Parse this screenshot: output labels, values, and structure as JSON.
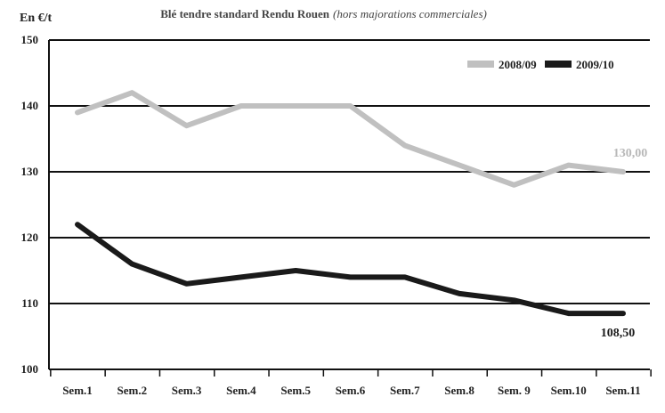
{
  "chart_data": {
    "type": "line",
    "title": "Blé tendre standard Rendu Rouen",
    "subtitle": "(hors majorations commerciales)",
    "ylabel": "En €/t",
    "ylim": [
      100,
      150
    ],
    "yticks": [
      "100",
      "110",
      "120",
      "130",
      "140",
      "150"
    ],
    "categories": [
      "Sem.1",
      "Sem.2",
      "Sem.3",
      "Sem.4",
      "Sem.5",
      "Sem.6",
      "Sem.7",
      "Sem.8",
      "Sem. 9",
      "Sem.10",
      "Sem.11"
    ],
    "grid": true,
    "legend_position": "top-right",
    "series": [
      {
        "name": "2008/09",
        "color": "#c0c0c0",
        "values": [
          139,
          142,
          137,
          140,
          140,
          140,
          134,
          131,
          128,
          131,
          130
        ],
        "end_label": "130,00"
      },
      {
        "name": "2009/10",
        "color": "#1a1a1a",
        "values": [
          122,
          116,
          113,
          114,
          115,
          114,
          114,
          111.5,
          110.5,
          108.5,
          108.5
        ],
        "end_label": "108,50"
      }
    ]
  }
}
